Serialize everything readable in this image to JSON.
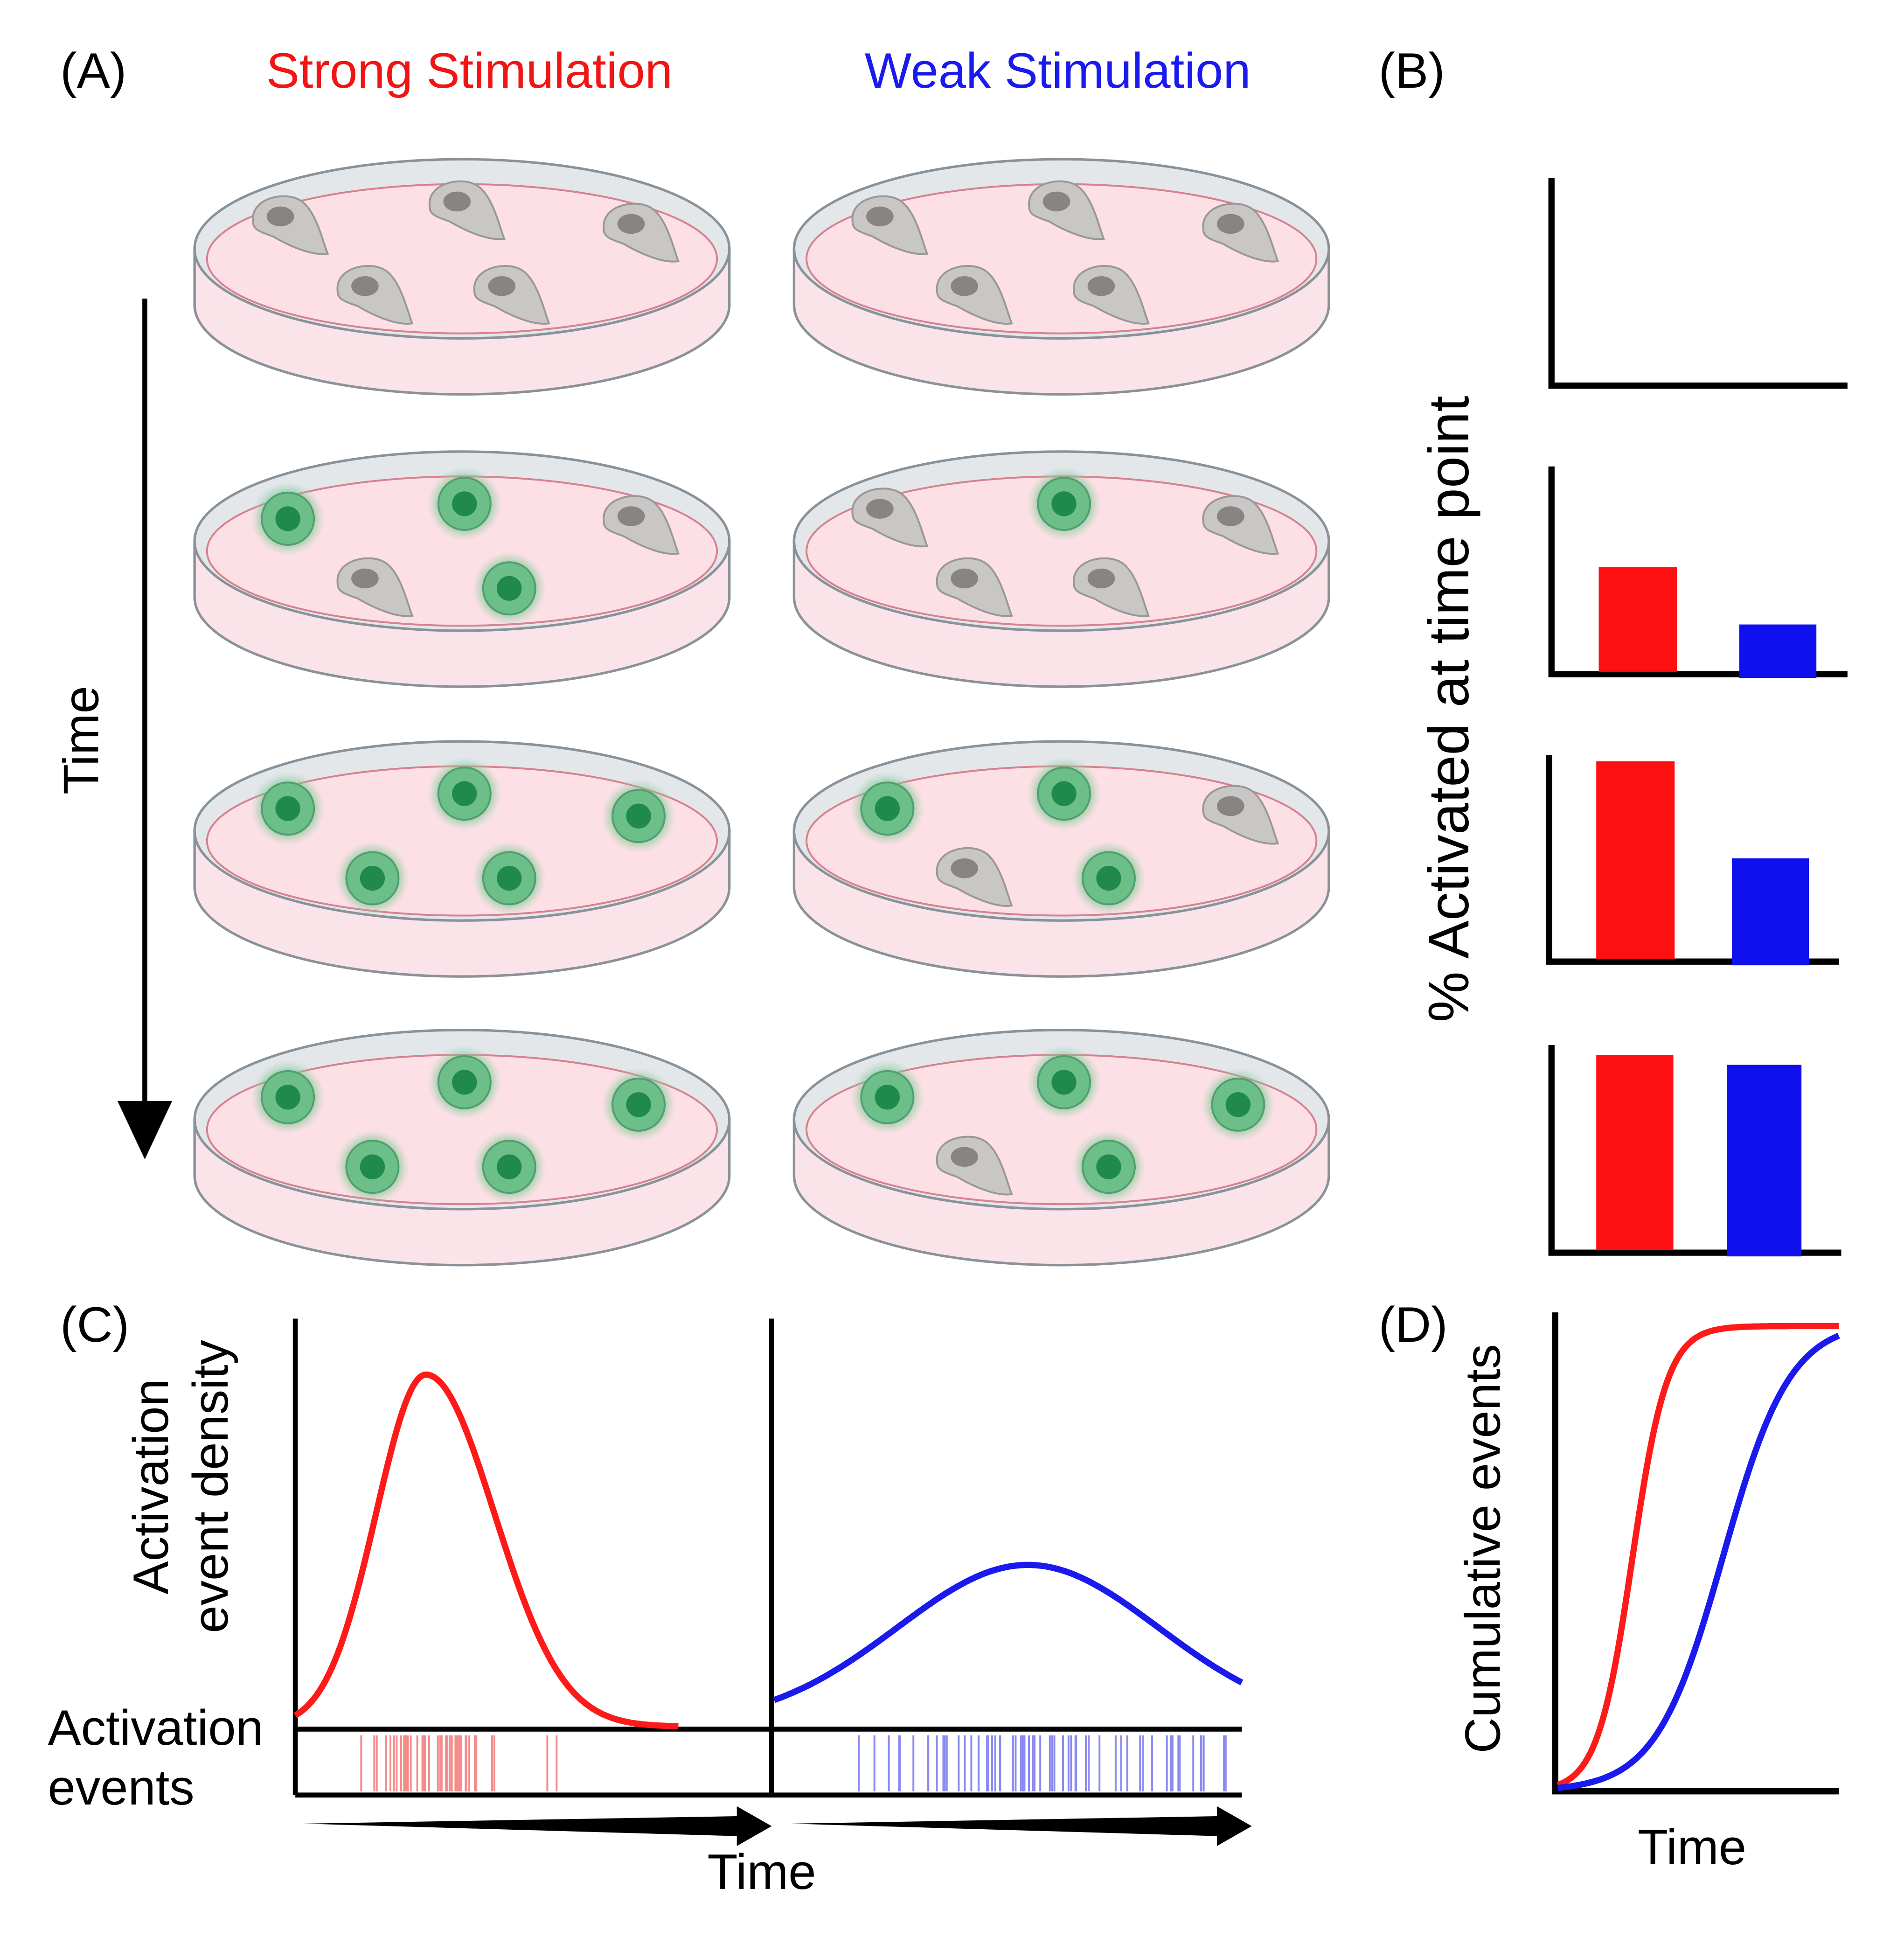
{
  "panels": {
    "a": {
      "label": "(A)",
      "columns": [
        "Strong Stimulation",
        "Weak Stimulation"
      ],
      "axis_label": "Time"
    },
    "b": {
      "label": "(B)",
      "axis_label": "% Activated at time point"
    },
    "c": {
      "label": "(C)",
      "y_label": [
        "Activation",
        "event density"
      ],
      "events_label": [
        "Activation",
        "events"
      ],
      "x_label": "Time"
    },
    "d": {
      "label": "(D)",
      "y_label": "Cumulative events",
      "x_label": "Time"
    }
  }
}
